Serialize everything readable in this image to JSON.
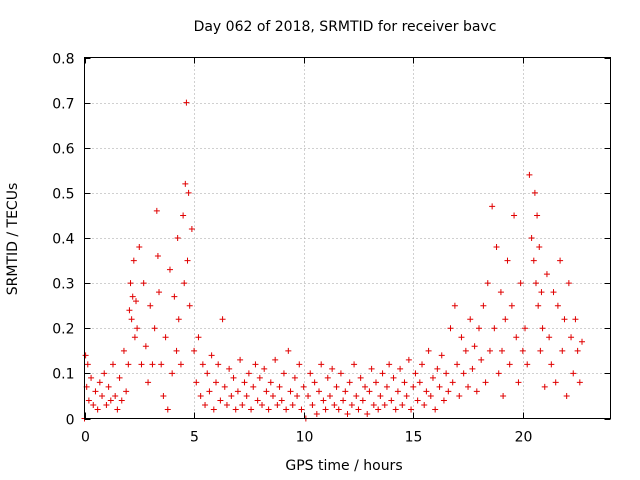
{
  "chart_data": {
    "type": "scatter",
    "title": "Day 062 of 2018, SRMTID for receiver bavc",
    "xlabel": "GPS time / hours",
    "ylabel": "SRMTID / TECUs",
    "xlim": [
      0,
      24
    ],
    "ylim": [
      0,
      0.8
    ],
    "x_ticks": [
      0,
      5,
      10,
      15,
      20
    ],
    "x_tick_labels": [
      "0",
      "5",
      "10",
      "15",
      "20"
    ],
    "y_ticks": [
      0,
      0.1,
      0.2,
      0.3,
      0.4,
      0.5,
      0.6,
      0.7,
      0.8
    ],
    "y_tick_labels": [
      "0",
      "0.1",
      "0.2",
      "0.3",
      "0.4",
      "0.5",
      "0.6",
      "0.7",
      "0.8"
    ],
    "grid": true,
    "marker": "+",
    "color": "#e00000",
    "series": [
      {
        "name": "SRMTID",
        "x": [
          0.0,
          0.05,
          0.1,
          0.15,
          0.2,
          0.3,
          0.4,
          0.5,
          0.6,
          0.7,
          0.8,
          0.9,
          1.0,
          1.1,
          1.2,
          1.3,
          1.4,
          1.5,
          1.6,
          1.7,
          1.8,
          1.9,
          2.0,
          2.05,
          2.1,
          2.15,
          2.2,
          2.25,
          2.3,
          2.35,
          2.4,
          2.5,
          2.6,
          2.7,
          2.8,
          2.9,
          3.0,
          3.1,
          3.2,
          3.3,
          3.35,
          3.4,
          3.5,
          3.6,
          3.7,
          3.8,
          3.9,
          4.0,
          4.1,
          4.2,
          4.25,
          4.3,
          4.4,
          4.5,
          4.55,
          4.6,
          4.65,
          4.7,
          4.75,
          4.8,
          4.9,
          5.0,
          5.1,
          5.2,
          5.3,
          5.4,
          5.5,
          5.6,
          5.7,
          5.8,
          5.9,
          6.0,
          6.1,
          6.2,
          6.3,
          6.4,
          6.5,
          6.6,
          6.7,
          6.8,
          6.9,
          7.0,
          7.1,
          7.2,
          7.3,
          7.4,
          7.5,
          7.6,
          7.7,
          7.8,
          7.9,
          8.0,
          8.1,
          8.2,
          8.3,
          8.4,
          8.5,
          8.6,
          8.7,
          8.8,
          8.9,
          9.0,
          9.1,
          9.2,
          9.3,
          9.4,
          9.5,
          9.6,
          9.7,
          9.8,
          9.9,
          10.0,
          10.1,
          10.2,
          10.3,
          10.4,
          10.5,
          10.6,
          10.7,
          10.8,
          10.9,
          11.0,
          11.1,
          11.2,
          11.3,
          11.4,
          11.5,
          11.6,
          11.7,
          11.8,
          11.9,
          12.0,
          12.1,
          12.2,
          12.3,
          12.4,
          12.5,
          12.6,
          12.7,
          12.8,
          12.9,
          13.0,
          13.1,
          13.2,
          13.3,
          13.4,
          13.5,
          13.6,
          13.7,
          13.8,
          13.9,
          14.0,
          14.1,
          14.2,
          14.3,
          14.4,
          14.5,
          14.6,
          14.7,
          14.8,
          14.9,
          15.0,
          15.1,
          15.2,
          15.3,
          15.4,
          15.5,
          15.6,
          15.7,
          15.8,
          15.9,
          16.0,
          16.1,
          16.2,
          16.3,
          16.4,
          16.5,
          16.6,
          16.7,
          16.8,
          16.9,
          17.0,
          17.1,
          17.2,
          17.3,
          17.4,
          17.5,
          17.6,
          17.7,
          17.8,
          17.9,
          18.0,
          18.1,
          18.2,
          18.3,
          18.4,
          18.5,
          18.6,
          18.7,
          18.8,
          18.9,
          19.0,
          19.05,
          19.1,
          19.2,
          19.3,
          19.4,
          19.5,
          19.6,
          19.7,
          19.8,
          19.9,
          20.0,
          20.1,
          20.2,
          20.3,
          20.4,
          20.5,
          20.55,
          20.6,
          20.65,
          20.7,
          20.75,
          20.8,
          20.85,
          20.9,
          21.0,
          21.1,
          21.2,
          21.3,
          21.4,
          21.5,
          21.6,
          21.7,
          21.8,
          21.9,
          22.0,
          22.1,
          22.2,
          22.3,
          22.4,
          22.5,
          22.6,
          22.7
        ],
        "y": [
          0.0,
          0.14,
          0.07,
          0.12,
          0.04,
          0.09,
          0.03,
          0.06,
          0.02,
          0.08,
          0.05,
          0.1,
          0.03,
          0.07,
          0.04,
          0.12,
          0.05,
          0.02,
          0.09,
          0.04,
          0.15,
          0.06,
          0.12,
          0.24,
          0.3,
          0.22,
          0.27,
          0.35,
          0.18,
          0.26,
          0.2,
          0.38,
          0.12,
          0.3,
          0.16,
          0.08,
          0.25,
          0.12,
          0.2,
          0.46,
          0.36,
          0.28,
          0.12,
          0.05,
          0.18,
          0.02,
          0.33,
          0.1,
          0.27,
          0.15,
          0.4,
          0.22,
          0.12,
          0.45,
          0.3,
          0.52,
          0.7,
          0.35,
          0.5,
          0.25,
          0.42,
          0.15,
          0.08,
          0.18,
          0.05,
          0.12,
          0.03,
          0.1,
          0.06,
          0.14,
          0.02,
          0.08,
          0.12,
          0.04,
          0.22,
          0.07,
          0.03,
          0.11,
          0.05,
          0.09,
          0.02,
          0.06,
          0.13,
          0.03,
          0.08,
          0.05,
          0.1,
          0.02,
          0.07,
          0.12,
          0.04,
          0.09,
          0.03,
          0.11,
          0.06,
          0.02,
          0.08,
          0.05,
          0.13,
          0.03,
          0.07,
          0.04,
          0.1,
          0.02,
          0.15,
          0.06,
          0.03,
          0.09,
          0.05,
          0.12,
          0.02,
          0.07,
          0.0,
          0.05,
          0.1,
          0.03,
          0.08,
          0.01,
          0.06,
          0.12,
          0.04,
          0.02,
          0.09,
          0.05,
          0.11,
          0.03,
          0.07,
          0.02,
          0.1,
          0.04,
          0.06,
          0.01,
          0.08,
          0.03,
          0.12,
          0.05,
          0.02,
          0.09,
          0.04,
          0.07,
          0.01,
          0.06,
          0.11,
          0.03,
          0.08,
          0.02,
          0.05,
          0.1,
          0.03,
          0.07,
          0.12,
          0.04,
          0.09,
          0.02,
          0.06,
          0.11,
          0.03,
          0.08,
          0.05,
          0.13,
          0.02,
          0.07,
          0.1,
          0.04,
          0.08,
          0.12,
          0.03,
          0.06,
          0.15,
          0.05,
          0.09,
          0.02,
          0.11,
          0.07,
          0.14,
          0.04,
          0.1,
          0.06,
          0.2,
          0.08,
          0.25,
          0.12,
          0.05,
          0.18,
          0.1,
          0.15,
          0.07,
          0.22,
          0.11,
          0.16,
          0.06,
          0.2,
          0.13,
          0.25,
          0.08,
          0.3,
          0.15,
          0.47,
          0.2,
          0.38,
          0.1,
          0.28,
          0.15,
          0.05,
          0.22,
          0.35,
          0.12,
          0.25,
          0.45,
          0.18,
          0.08,
          0.3,
          0.15,
          0.2,
          0.12,
          0.54,
          0.4,
          0.35,
          0.5,
          0.3,
          0.45,
          0.25,
          0.38,
          0.15,
          0.28,
          0.2,
          0.07,
          0.32,
          0.18,
          0.12,
          0.28,
          0.08,
          0.25,
          0.35,
          0.15,
          0.22,
          0.05,
          0.3,
          0.18,
          0.1,
          0.22,
          0.15,
          0.08,
          0.17
        ]
      }
    ]
  }
}
